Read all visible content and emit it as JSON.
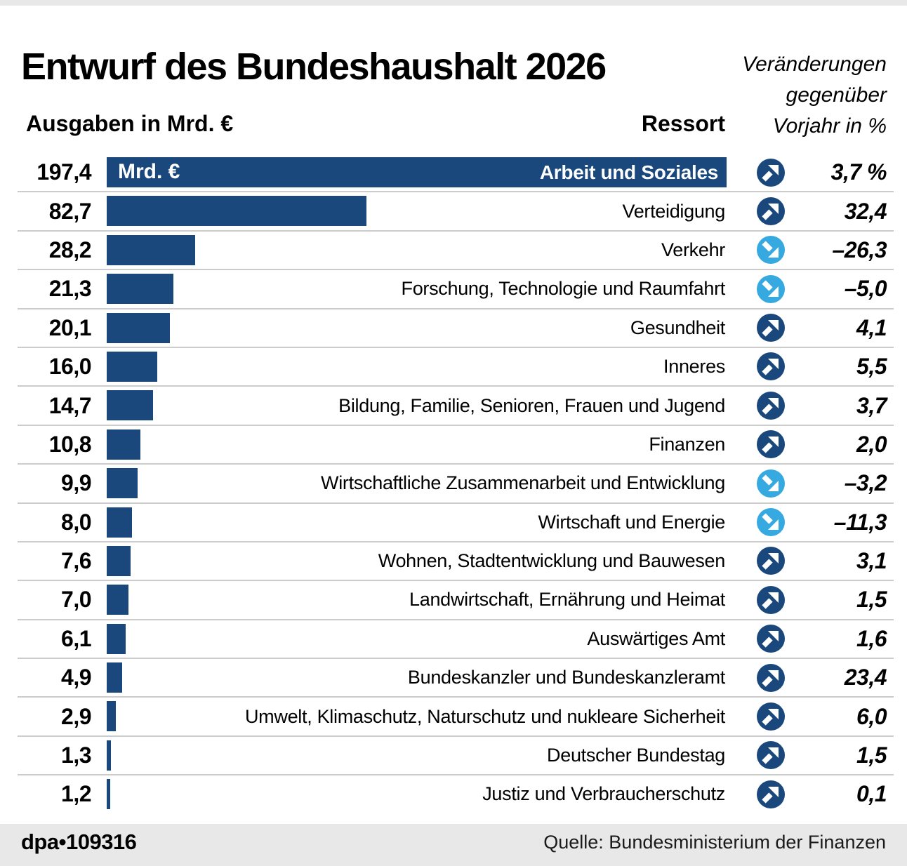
{
  "title": "Entwurf des Bundeshaushalt 2026",
  "header": {
    "left_label": "Ausgaben in Mrd. €",
    "ressort_label": "Ressort",
    "change_note_lines": [
      "Veränderungen",
      "gegenüber",
      "Vorjahr in %"
    ]
  },
  "chart_data": {
    "type": "bar",
    "orientation": "horizontal",
    "title": "Entwurf des Bundeshaushalt 2026",
    "xlabel": "Ausgaben in Mrd. €",
    "unit_label": "Mrd. €",
    "max_value": 197.4,
    "xlim": [
      0,
      197.4
    ],
    "grid": false,
    "rows": [
      {
        "value_label": "197,4",
        "value": 197.4,
        "ressort": "Arbeit und Soziales",
        "direction": "up",
        "change_label": "3,7 %",
        "change": 3.7
      },
      {
        "value_label": "82,7",
        "value": 82.7,
        "ressort": "Verteidigung",
        "direction": "up",
        "change_label": "32,4",
        "change": 32.4
      },
      {
        "value_label": "28,2",
        "value": 28.2,
        "ressort": "Verkehr",
        "direction": "down",
        "change_label": "–26,3",
        "change": -26.3
      },
      {
        "value_label": "21,3",
        "value": 21.3,
        "ressort": "Forschung, Technologie und Raumfahrt",
        "direction": "down",
        "change_label": "–5,0",
        "change": -5.0
      },
      {
        "value_label": "20,1",
        "value": 20.1,
        "ressort": "Gesundheit",
        "direction": "up",
        "change_label": "4,1",
        "change": 4.1
      },
      {
        "value_label": "16,0",
        "value": 16.0,
        "ressort": "Inneres",
        "direction": "up",
        "change_label": "5,5",
        "change": 5.5
      },
      {
        "value_label": "14,7",
        "value": 14.7,
        "ressort": "Bildung, Familie, Senioren, Frauen und Jugend",
        "direction": "up",
        "change_label": "3,7",
        "change": 3.7
      },
      {
        "value_label": "10,8",
        "value": 10.8,
        "ressort": "Finanzen",
        "direction": "up",
        "change_label": "2,0",
        "change": 2.0
      },
      {
        "value_label": "9,9",
        "value": 9.9,
        "ressort": "Wirtschaftliche Zusammenarbeit und Entwicklung",
        "direction": "down",
        "change_label": "–3,2",
        "change": -3.2
      },
      {
        "value_label": "8,0",
        "value": 8.0,
        "ressort": "Wirtschaft und Energie",
        "direction": "down",
        "change_label": "–11,3",
        "change": -11.3
      },
      {
        "value_label": "7,6",
        "value": 7.6,
        "ressort": "Wohnen, Stadtentwicklung und Bauwesen",
        "direction": "up",
        "change_label": "3,1",
        "change": 3.1
      },
      {
        "value_label": "7,0",
        "value": 7.0,
        "ressort": "Landwirtschaft, Ernährung und Heimat",
        "direction": "up",
        "change_label": "1,5",
        "change": 1.5
      },
      {
        "value_label": "6,1",
        "value": 6.1,
        "ressort": "Auswärtiges Amt",
        "direction": "up",
        "change_label": "1,6",
        "change": 1.6
      },
      {
        "value_label": "4,9",
        "value": 4.9,
        "ressort": "Bundeskanzler und Bundeskanzleramt",
        "direction": "up",
        "change_label": "23,4",
        "change": 23.4
      },
      {
        "value_label": "2,9",
        "value": 2.9,
        "ressort": "Umwelt, Klimaschutz, Naturschutz und nukleare Sicherheit",
        "direction": "up",
        "change_label": "6,0",
        "change": 6.0
      },
      {
        "value_label": "1,3",
        "value": 1.3,
        "ressort": "Deutscher Bundestag",
        "direction": "up",
        "change_label": "1,5",
        "change": 1.5
      },
      {
        "value_label": "1,2",
        "value": 1.2,
        "ressort": "Justiz und Verbraucherschutz",
        "direction": "up",
        "change_label": "0,1",
        "change": 0.1
      }
    ]
  },
  "footer": {
    "credit": "dpa•109316",
    "source": "Quelle: Bundesministerium der Finanzen"
  },
  "colors": {
    "bar": "#1a487d",
    "up": "#1a487d",
    "down": "#36a9e1",
    "separator": "#cccccc",
    "footer_bg": "#e8e8e8"
  }
}
